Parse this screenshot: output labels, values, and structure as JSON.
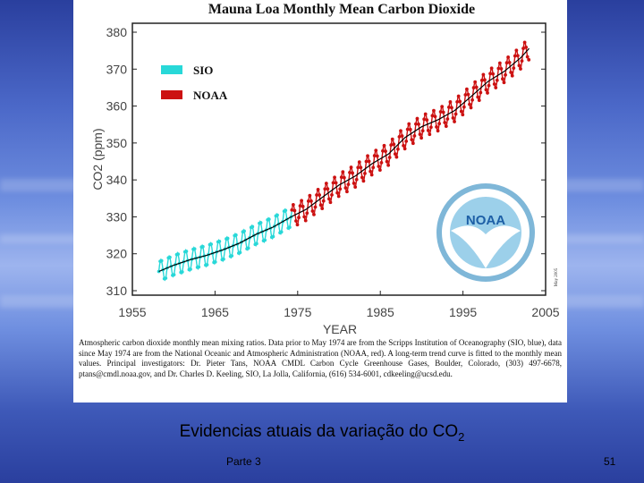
{
  "slide": {
    "caption_main": "Evidencias atuais da variação do CO",
    "caption_sub": "2",
    "footer_label": "Parte 3",
    "page_number": "51"
  },
  "figure": {
    "caption_text": "Atmospheric carbon dioxide monthly mean mixing ratios. Data prior to May 1974 are from the Scripps Institution of Oceanography (SIO, blue), data since May 1974 are from the National Oceanic and Atmospheric Administration (NOAA, red). A long-term trend curve is fitted to the monthly mean values. Principal investigators: Dr. Pieter Tans, NOAA CMDL Carbon Cycle Greenhouse Gases, Boulder, Colorado, (303) 497-6678, ptans@cmdl.noaa.gov, and Dr. Charles D. Keeling, SIO, La Jolla, California, (616) 534-6001, cdkeeling@ucsd.edu.",
    "date_stamp": "May 2005",
    "logo_text": "NOAA"
  },
  "colors": {
    "sio": "#28d8d8",
    "noaa": "#cc1111",
    "trend": "#000000"
  },
  "chart_data": {
    "type": "line",
    "title": "Mauna Loa Monthly Mean Carbon Dioxide",
    "xlabel": "YEAR",
    "ylabel": "CO2 (ppm)",
    "xlim": [
      1955,
      2005
    ],
    "ylim": [
      310,
      380
    ],
    "xticks": [
      1955,
      1965,
      1975,
      1985,
      1995,
      2005
    ],
    "yticks": [
      310,
      320,
      330,
      340,
      350,
      360,
      370,
      380
    ],
    "grid": false,
    "legend": "top-left",
    "seasonal_amplitude_ppm": 3,
    "series": [
      {
        "name": "SIO",
        "x": [
          1958.2,
          1960,
          1962,
          1964,
          1966,
          1968,
          1970,
          1972,
          1974.3
        ],
        "y": [
          315.2,
          316.9,
          318.4,
          319.6,
          321.1,
          322.9,
          325.3,
          327.2,
          330.1
        ]
      },
      {
        "name": "NOAA",
        "x": [
          1974.3,
          1976,
          1978,
          1980,
          1982,
          1984,
          1986,
          1988,
          1990,
          1992,
          1994,
          1996,
          1998,
          2000,
          2002,
          2003
        ],
        "y": [
          330.1,
          332.0,
          335.3,
          338.6,
          341.1,
          344.4,
          347.0,
          351.5,
          354.4,
          356.3,
          358.8,
          362.6,
          366.6,
          369.4,
          373.1,
          375.6
        ]
      }
    ]
  }
}
